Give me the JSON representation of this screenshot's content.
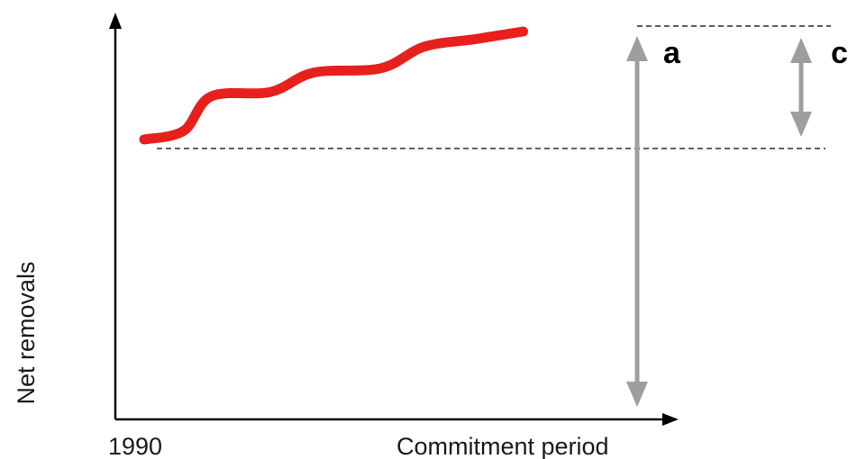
{
  "chart_data": {
    "type": "line",
    "title": "",
    "ylabel": "Net removals",
    "x_tick_labels": [
      "1990",
      "Commitment period"
    ],
    "series": [
      {
        "color": "#e8201c",
        "points": [
          [
            0.0,
            0.0
          ],
          [
            0.1,
            0.08
          ],
          [
            0.17,
            0.4
          ],
          [
            0.32,
            0.44
          ],
          [
            0.43,
            0.62
          ],
          [
            0.6,
            0.66
          ],
          [
            0.71,
            0.86
          ],
          [
            0.84,
            0.93
          ],
          [
            0.96,
            1.0
          ]
        ]
      }
    ],
    "reference_lines": [
      {
        "level": "top",
        "style": "dashed"
      },
      {
        "level": "bottom",
        "style": "dashed"
      }
    ],
    "annotations": [
      {
        "label": "a",
        "spans": "x-axis to top dashed line"
      },
      {
        "label": "c",
        "spans": "bottom dashed line to top dashed line"
      }
    ],
    "colors": {
      "curve": "#e8201c",
      "arrows": "#9e9e9e",
      "axes": "#000000",
      "dashes": "#000000"
    }
  }
}
